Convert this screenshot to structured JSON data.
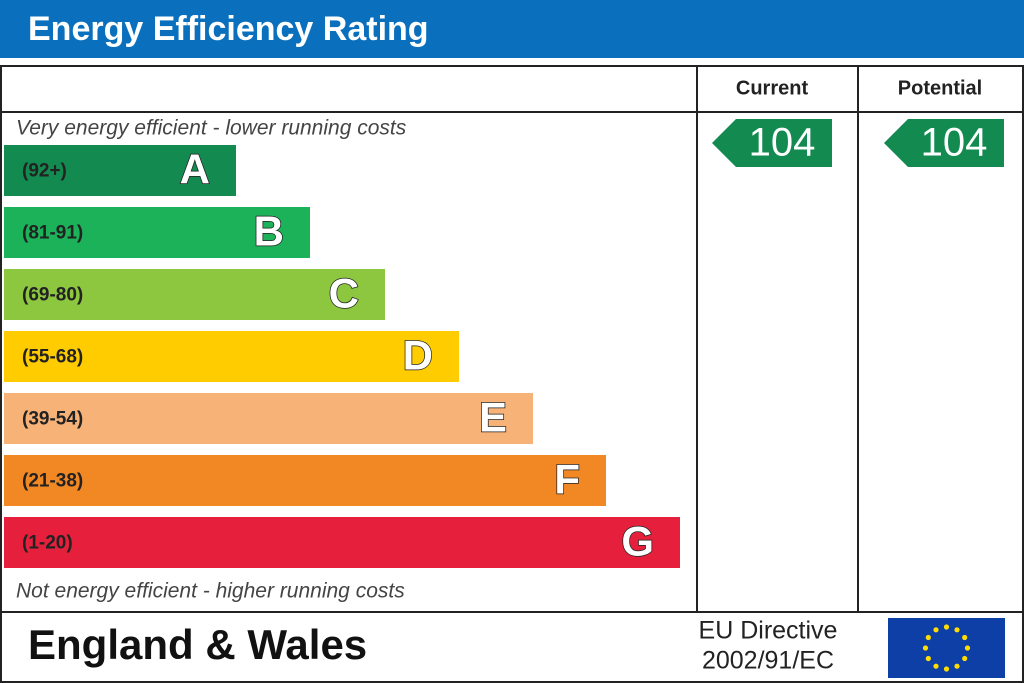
{
  "header": {
    "title": "Energy Efficiency Rating"
  },
  "columns": {
    "current": "Current",
    "potential": "Potential"
  },
  "top_note": "Very energy efficient - lower running costs",
  "bottom_note": "Not energy efficient - higher running costs",
  "bands": [
    {
      "range": "(92+)",
      "letter": "A"
    },
    {
      "range": "(81-91)",
      "letter": "B"
    },
    {
      "range": "(69-80)",
      "letter": "C"
    },
    {
      "range": "(55-68)",
      "letter": "D"
    },
    {
      "range": "(39-54)",
      "letter": "E"
    },
    {
      "range": "(21-38)",
      "letter": "F"
    },
    {
      "range": "(1-20)",
      "letter": "G"
    }
  ],
  "current": 104,
  "potential": 104,
  "footer": {
    "region": "England & Wales",
    "directive": [
      "EU Directive",
      "2002/91/EC"
    ]
  }
}
